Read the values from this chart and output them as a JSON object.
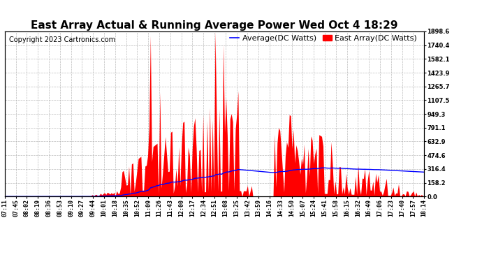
{
  "title": "East Array Actual & Running Average Power Wed Oct 4 18:29",
  "copyright": "Copyright 2023 Cartronics.com",
  "legend_avg": "Average(DC Watts)",
  "legend_east": "East Array(DC Watts)",
  "ylabel_right_ticks": [
    0.0,
    158.2,
    316.4,
    474.6,
    632.9,
    791.1,
    949.3,
    1107.5,
    1265.7,
    1423.9,
    1582.1,
    1740.4,
    1898.6
  ],
  "ylim": [
    0,
    1898.6
  ],
  "x_labels": [
    "07:11",
    "07:45",
    "08:02",
    "08:19",
    "08:36",
    "08:53",
    "09:10",
    "09:27",
    "09:44",
    "10:01",
    "10:18",
    "10:35",
    "10:52",
    "11:09",
    "11:26",
    "11:43",
    "12:00",
    "12:17",
    "12:34",
    "12:51",
    "13:08",
    "13:25",
    "13:42",
    "13:59",
    "14:16",
    "14:33",
    "14:50",
    "15:07",
    "15:24",
    "15:41",
    "15:58",
    "16:15",
    "16:32",
    "16:49",
    "17:06",
    "17:23",
    "17:40",
    "17:57",
    "18:14"
  ],
  "title_fontsize": 11,
  "copyright_fontsize": 7,
  "legend_fontsize": 8,
  "axis_fontsize": 6,
  "background_color": "#ffffff",
  "grid_color": "#aaaaaa",
  "fill_color": "#ff0000",
  "line_color": "#0000ff",
  "title_color": "#000000",
  "copyright_color": "#000000",
  "legend_avg_color": "#0000ff",
  "legend_east_color": "#ff0000"
}
